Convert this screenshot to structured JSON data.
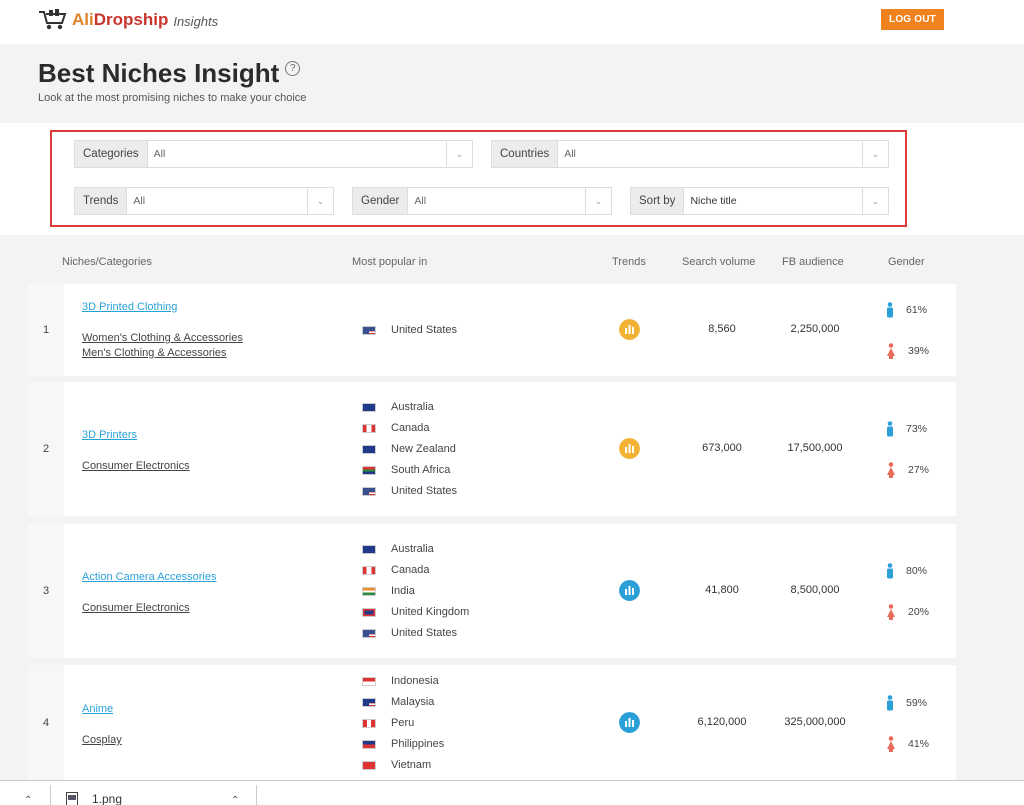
{
  "brand": {
    "ali": "Ali",
    "dropship": "Dropship",
    "sub": "Insights"
  },
  "header": {
    "logout_label": "LOG OUT"
  },
  "page": {
    "title": "Best Niches Insight",
    "help": "?",
    "subtitle": "Look at the most promising niches to make your choice"
  },
  "filters": {
    "categories": {
      "label": "Categories",
      "value": "All"
    },
    "countries": {
      "label": "Countries",
      "value": "All"
    },
    "trends": {
      "label": "Trends",
      "value": "All"
    },
    "gender": {
      "label": "Gender",
      "value": "All"
    },
    "sort": {
      "label": "Sort by",
      "value": "Niche title"
    }
  },
  "columns": {
    "niches": "Niches/Categories",
    "popular": "Most popular in",
    "trends": "Trends",
    "search": "Search volume",
    "fb": "FB audience",
    "gender": "Gender"
  },
  "rows": [
    {
      "num": "1",
      "niche": "3D Printed Clothing",
      "categories": [
        "Women's Clothing & Accessories",
        "Men's Clothing & Accessories"
      ],
      "countries": [
        "United States"
      ],
      "trend_color": "#f2b233",
      "search": "8,560",
      "fb": "2,250,000",
      "male": "61%",
      "female": "39%"
    },
    {
      "num": "2",
      "niche": "3D Printers",
      "categories": [
        "Consumer Electronics"
      ],
      "countries": [
        "Australia",
        "Canada",
        "New Zealand",
        "South Africa",
        "United States"
      ],
      "trend_color": "#f2b233",
      "search": "673,000",
      "fb": "17,500,000",
      "male": "73%",
      "female": "27%"
    },
    {
      "num": "3",
      "niche": "Action Camera Accessories",
      "categories": [
        "Consumer Electronics"
      ],
      "countries": [
        "Australia",
        "Canada",
        "India",
        "United Kingdom",
        "United States"
      ],
      "trend_color": "#2a9fd8",
      "search": "41,800",
      "fb": "8,500,000",
      "male": "80%",
      "female": "20%"
    },
    {
      "num": "4",
      "niche": "Anime",
      "categories": [
        "Cosplay"
      ],
      "countries": [
        "Indonesia",
        "Malaysia",
        "Peru",
        "Philippines",
        "Vietnam"
      ],
      "trend_color": "#2a9fd8",
      "search": "6,120,000",
      "fb": "325,000,000",
      "male": "59%",
      "female": "41%"
    }
  ],
  "download": {
    "filename": "1.png"
  }
}
